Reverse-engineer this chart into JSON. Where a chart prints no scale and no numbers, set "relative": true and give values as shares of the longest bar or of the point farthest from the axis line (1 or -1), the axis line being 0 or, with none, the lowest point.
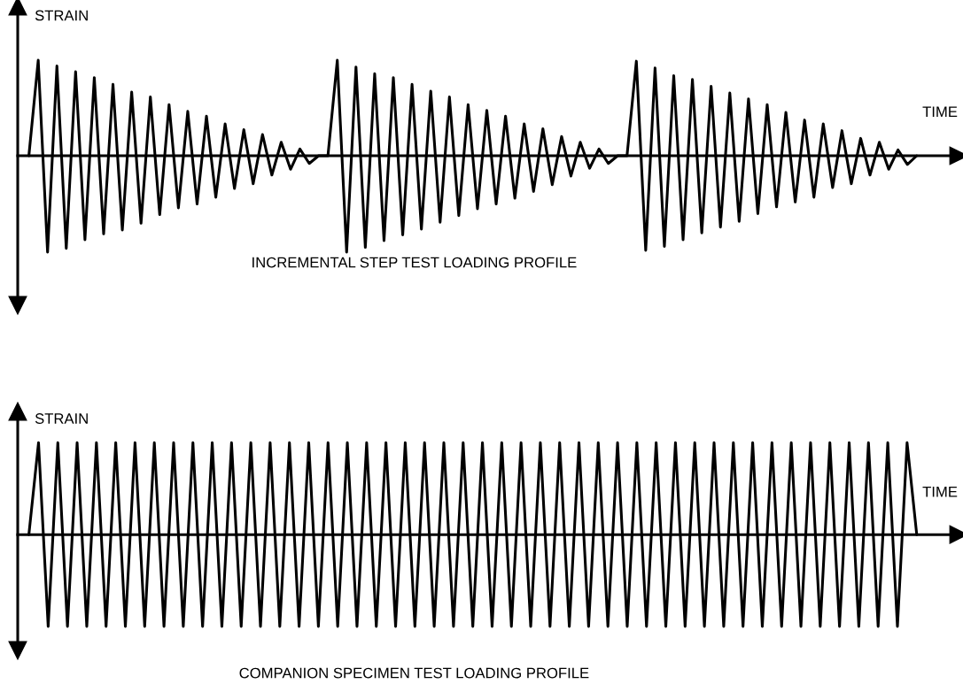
{
  "chart_data": [
    {
      "type": "line",
      "relative": true,
      "title": "INCREMENTAL STEP TEST LOADING PROFILE",
      "xlabel": "TIME",
      "ylabel": "STRAIN",
      "categories": [
        null,
        null,
        null,
        null,
        null,
        null,
        null,
        null,
        null,
        null,
        null,
        null,
        null,
        null,
        null,
        null,
        null,
        null,
        null,
        null,
        null,
        null,
        null,
        null,
        null,
        null,
        null,
        null,
        null,
        null,
        null,
        null,
        null,
        null,
        null,
        null,
        null,
        null,
        null,
        null,
        null,
        null,
        null,
        null,
        null,
        null,
        null,
        null,
        null,
        null,
        null,
        null,
        null,
        null,
        null,
        null,
        null,
        null,
        null,
        null,
        null,
        null,
        null,
        null,
        null,
        null,
        null,
        null,
        null,
        null,
        null,
        null,
        null,
        null,
        null,
        null,
        null,
        null,
        null,
        null,
        null,
        null,
        null,
        null,
        null,
        null,
        null,
        null,
        null,
        null,
        null,
        null,
        null,
        null,
        null,
        null
      ],
      "series": [
        {
          "color": "#000000",
          "values": [
            0,
            0.99,
            -1,
            0.93,
            -0.96,
            0.87,
            -0.87,
            0.81,
            -0.81,
            0.74,
            -0.77,
            0.66,
            -0.7,
            0.61,
            -0.61,
            0.53,
            -0.54,
            0.46,
            -0.5,
            0.41,
            -0.43,
            0.33,
            -0.34,
            0.27,
            -0.29,
            0.22,
            -0.2,
            0.14,
            -0.14,
            0.07,
            -0.08,
            0,
            0,
            0.99,
            -1,
            0.92,
            -0.95,
            0.85,
            -0.88,
            0.81,
            -0.82,
            0.74,
            -0.76,
            0.67,
            -0.69,
            0.61,
            -0.62,
            0.53,
            -0.55,
            0.47,
            -0.5,
            0.41,
            -0.44,
            0.33,
            -0.37,
            0.28,
            -0.3,
            0.2,
            -0.21,
            0.14,
            -0.13,
            0.07,
            -0.08,
            0,
            0,
            0.98,
            -0.98,
            0.91,
            -0.94,
            0.83,
            -0.87,
            0.79,
            -0.8,
            0.72,
            -0.74,
            0.65,
            -0.68,
            0.59,
            -0.6,
            0.53,
            -0.53,
            0.45,
            -0.48,
            0.37,
            -0.43,
            0.33,
            -0.33,
            0.26,
            -0.29,
            0.18,
            -0.2,
            0.14,
            -0.14,
            0.06,
            -0.09,
            0
          ]
        }
      ]
    },
    {
      "type": "line",
      "relative": true,
      "title": "COMPANION SPECIMEN TEST LOADING PROFILE",
      "xlabel": "TIME",
      "ylabel": "STRAIN",
      "categories": [
        null,
        null,
        null,
        null,
        null,
        null,
        null,
        null,
        null,
        null,
        null,
        null,
        null,
        null,
        null,
        null,
        null,
        null,
        null,
        null,
        null,
        null,
        null,
        null,
        null,
        null,
        null,
        null,
        null,
        null,
        null,
        null,
        null,
        null,
        null,
        null,
        null,
        null,
        null,
        null,
        null,
        null,
        null,
        null,
        null,
        null,
        null,
        null,
        null,
        null,
        null,
        null,
        null,
        null,
        null,
        null,
        null,
        null,
        null,
        null,
        null,
        null,
        null,
        null,
        null,
        null,
        null,
        null,
        null,
        null,
        null,
        null,
        null,
        null,
        null,
        null,
        null,
        null,
        null,
        null,
        null,
        null,
        null,
        null,
        null,
        null,
        null,
        null,
        null,
        null,
        null,
        null,
        null
      ],
      "series": [
        {
          "color": "#000000",
          "values": [
            0,
            1,
            -1,
            1,
            -1,
            1,
            -1,
            1,
            -1,
            1,
            -1,
            1,
            -1,
            1,
            -1,
            1,
            -1,
            1,
            -1,
            1,
            -1,
            1,
            -1,
            1,
            -1,
            1,
            -1,
            1,
            -1,
            1,
            -1,
            1,
            -1,
            1,
            -1,
            1,
            -1,
            1,
            -1,
            1,
            -1,
            1,
            -1,
            1,
            -1,
            1,
            -1,
            1,
            -1,
            1,
            -1,
            1,
            -1,
            1,
            -1,
            1,
            -1,
            1,
            -1,
            1,
            -1,
            1,
            -1,
            1,
            -1,
            1,
            -1,
            1,
            -1,
            1,
            -1,
            1,
            -1,
            1,
            -1,
            1,
            -1,
            1,
            -1,
            1,
            -1,
            1,
            -1,
            1,
            -1,
            1,
            -1,
            1,
            -1,
            1,
            -1,
            1,
            0
          ]
        }
      ]
    }
  ]
}
